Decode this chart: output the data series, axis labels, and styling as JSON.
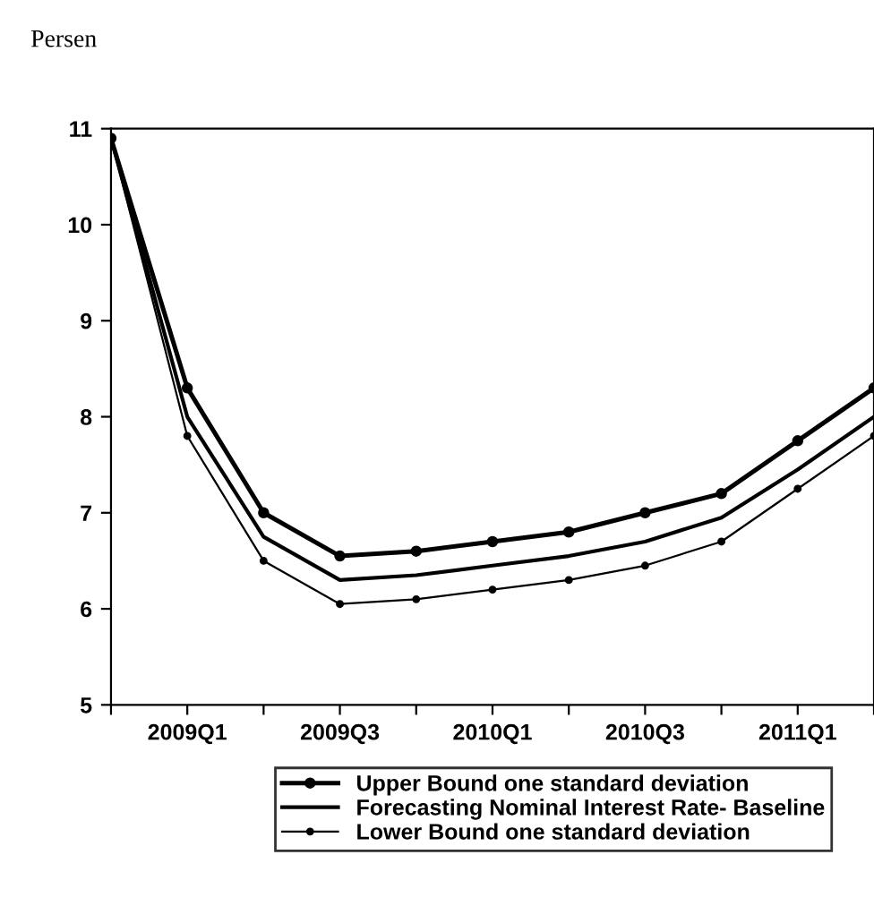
{
  "chart_data": {
    "type": "line",
    "ylabel": "Persen",
    "categories": [
      null,
      "2009Q1",
      null,
      "2009Q3",
      null,
      "2010Q1",
      null,
      "2010Q3",
      null,
      "2011Q1",
      null
    ],
    "series": [
      {
        "name": "Upper Bound one standard deviation",
        "color": "#000000",
        "marker": "circle",
        "values": [
          10.9,
          8.3,
          7.0,
          6.55,
          6.6,
          6.7,
          6.8,
          7.0,
          7.2,
          7.75,
          8.3
        ]
      },
      {
        "name": "Forecasting Nominal Interest Rate- Baseline",
        "color": "#000000",
        "marker": "none",
        "values": [
          10.9,
          8.0,
          6.75,
          6.3,
          6.35,
          6.45,
          6.55,
          6.7,
          6.95,
          7.45,
          8.0
        ]
      },
      {
        "name": "Lower Bound one standard deviation",
        "color": "#000000",
        "marker": "circle",
        "values": [
          10.9,
          7.8,
          6.5,
          6.05,
          6.1,
          6.2,
          6.3,
          6.45,
          6.7,
          7.25,
          7.8
        ]
      }
    ],
    "ylim": [
      5,
      11
    ],
    "yticks": [
      5,
      6,
      7,
      8,
      9,
      10,
      11
    ],
    "grid": false,
    "legend": "bottom",
    "line_style": "solid"
  }
}
